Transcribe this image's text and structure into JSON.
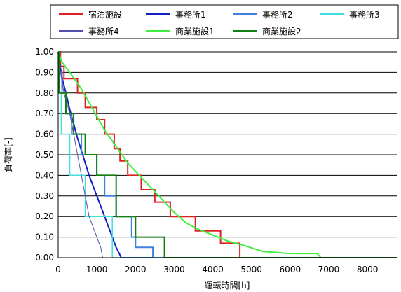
{
  "chart_data": {
    "type": "line",
    "title": "",
    "xlabel": "運転時間[h]",
    "ylabel": "負荷率[-]",
    "xlim": [
      0,
      8760
    ],
    "ylim": [
      0,
      1.0
    ],
    "x_ticks": [
      "0",
      "1000",
      "2000",
      "3000",
      "4000",
      "5000",
      "6000",
      "7000",
      "8000"
    ],
    "x_tick_values": [
      0,
      1000,
      2000,
      3000,
      4000,
      5000,
      6000,
      7000,
      8000
    ],
    "y_ticks": [
      "0.00",
      "0.10",
      "0.20",
      "0.30",
      "0.40",
      "0.50",
      "0.60",
      "0.70",
      "0.80",
      "0.90",
      "1.00"
    ],
    "y_tick_values": [
      0,
      0.1,
      0.2,
      0.3,
      0.4,
      0.5,
      0.6,
      0.7,
      0.8,
      0.9,
      1.0
    ],
    "grid": "horizontal",
    "legend_position": "top",
    "series": [
      {
        "name": "宿泊施設",
        "color": "#e02020",
        "width": 2,
        "points": [
          [
            0,
            1.0
          ],
          [
            60,
            1.0
          ],
          [
            60,
            0.93
          ],
          [
            150,
            0.93
          ],
          [
            150,
            0.87
          ],
          [
            500,
            0.87
          ],
          [
            500,
            0.8
          ],
          [
            700,
            0.8
          ],
          [
            700,
            0.73
          ],
          [
            1000,
            0.73
          ],
          [
            1000,
            0.67
          ],
          [
            1200,
            0.67
          ],
          [
            1200,
            0.6
          ],
          [
            1450,
            0.6
          ],
          [
            1450,
            0.53
          ],
          [
            1600,
            0.53
          ],
          [
            1600,
            0.47
          ],
          [
            1800,
            0.47
          ],
          [
            1800,
            0.4
          ],
          [
            2150,
            0.4
          ],
          [
            2150,
            0.33
          ],
          [
            2500,
            0.33
          ],
          [
            2500,
            0.27
          ],
          [
            2900,
            0.27
          ],
          [
            2900,
            0.2
          ],
          [
            3550,
            0.2
          ],
          [
            3550,
            0.13
          ],
          [
            4200,
            0.13
          ],
          [
            4200,
            0.07
          ],
          [
            4700,
            0.07
          ],
          [
            4700,
            0.0
          ],
          [
            8760,
            0.0
          ]
        ]
      },
      {
        "name": "事務所1",
        "color": "#1020c0",
        "width": 2,
        "points": [
          [
            0,
            1.0
          ],
          [
            50,
            0.93
          ],
          [
            120,
            0.86
          ],
          [
            200,
            0.8
          ],
          [
            300,
            0.72
          ],
          [
            400,
            0.65
          ],
          [
            500,
            0.58
          ],
          [
            600,
            0.52
          ],
          [
            700,
            0.46
          ],
          [
            800,
            0.4
          ],
          [
            900,
            0.35
          ],
          [
            1000,
            0.3
          ],
          [
            1100,
            0.25
          ],
          [
            1200,
            0.2
          ],
          [
            1300,
            0.15
          ],
          [
            1400,
            0.1
          ],
          [
            1500,
            0.05
          ],
          [
            1580,
            0.02
          ],
          [
            1630,
            0.0
          ],
          [
            8760,
            0.0
          ]
        ]
      },
      {
        "name": "事務所2",
        "color": "#4080e0",
        "width": 2,
        "points": [
          [
            0,
            1.0
          ],
          [
            40,
            1.0
          ],
          [
            40,
            0.9
          ],
          [
            100,
            0.9
          ],
          [
            100,
            0.8
          ],
          [
            200,
            0.8
          ],
          [
            200,
            0.7
          ],
          [
            350,
            0.7
          ],
          [
            350,
            0.6
          ],
          [
            600,
            0.6
          ],
          [
            600,
            0.5
          ],
          [
            1000,
            0.5
          ],
          [
            1000,
            0.4
          ],
          [
            1200,
            0.4
          ],
          [
            1200,
            0.3
          ],
          [
            1500,
            0.3
          ],
          [
            1500,
            0.2
          ],
          [
            1900,
            0.2
          ],
          [
            1900,
            0.1
          ],
          [
            2000,
            0.1
          ],
          [
            2000,
            0.05
          ],
          [
            2450,
            0.05
          ],
          [
            2450,
            0.0
          ],
          [
            8760,
            0.0
          ]
        ]
      },
      {
        "name": "事務所3",
        "color": "#40e0e0",
        "width": 1.5,
        "points": [
          [
            0,
            1.0
          ],
          [
            30,
            1.0
          ],
          [
            30,
            0.8
          ],
          [
            80,
            0.8
          ],
          [
            80,
            0.6
          ],
          [
            300,
            0.6
          ],
          [
            300,
            0.4
          ],
          [
            700,
            0.4
          ],
          [
            700,
            0.2
          ],
          [
            1400,
            0.2
          ],
          [
            1400,
            0.0
          ],
          [
            8760,
            0.0
          ]
        ]
      },
      {
        "name": "事務所4",
        "color": "#5050b0",
        "width": 1,
        "points": [
          [
            0,
            1.0
          ],
          [
            60,
            0.9
          ],
          [
            150,
            0.8
          ],
          [
            300,
            0.7
          ],
          [
            400,
            0.6
          ],
          [
            500,
            0.5
          ],
          [
            600,
            0.4
          ],
          [
            700,
            0.3
          ],
          [
            800,
            0.2
          ],
          [
            900,
            0.15
          ],
          [
            1000,
            0.1
          ],
          [
            1100,
            0.05
          ],
          [
            1150,
            0.0
          ],
          [
            8760,
            0.0
          ]
        ]
      },
      {
        "name": "商業施設1",
        "color": "#40ee40",
        "width": 2,
        "points": [
          [
            0,
            1.0
          ],
          [
            100,
            0.95
          ],
          [
            300,
            0.9
          ],
          [
            600,
            0.82
          ],
          [
            900,
            0.72
          ],
          [
            1200,
            0.62
          ],
          [
            1500,
            0.54
          ],
          [
            1800,
            0.46
          ],
          [
            2100,
            0.4
          ],
          [
            2400,
            0.34
          ],
          [
            2700,
            0.28
          ],
          [
            3000,
            0.22
          ],
          [
            3300,
            0.17
          ],
          [
            3600,
            0.14
          ],
          [
            4000,
            0.11
          ],
          [
            4400,
            0.08
          ],
          [
            4800,
            0.06
          ],
          [
            5300,
            0.03
          ],
          [
            6000,
            0.02
          ],
          [
            6700,
            0.02
          ],
          [
            6800,
            0.0
          ],
          [
            8760,
            0.0
          ]
        ]
      },
      {
        "name": "商業施設2",
        "color": "#108010",
        "width": 2,
        "points": [
          [
            0,
            1.0
          ],
          [
            20,
            1.0
          ],
          [
            20,
            0.8
          ],
          [
            200,
            0.8
          ],
          [
            200,
            0.7
          ],
          [
            400,
            0.7
          ],
          [
            400,
            0.6
          ],
          [
            700,
            0.6
          ],
          [
            700,
            0.5
          ],
          [
            1000,
            0.5
          ],
          [
            1000,
            0.4
          ],
          [
            1500,
            0.4
          ],
          [
            1500,
            0.2
          ],
          [
            2000,
            0.2
          ],
          [
            2000,
            0.1
          ],
          [
            2750,
            0.1
          ],
          [
            2750,
            0.0
          ],
          [
            8760,
            0.0
          ]
        ]
      }
    ]
  }
}
